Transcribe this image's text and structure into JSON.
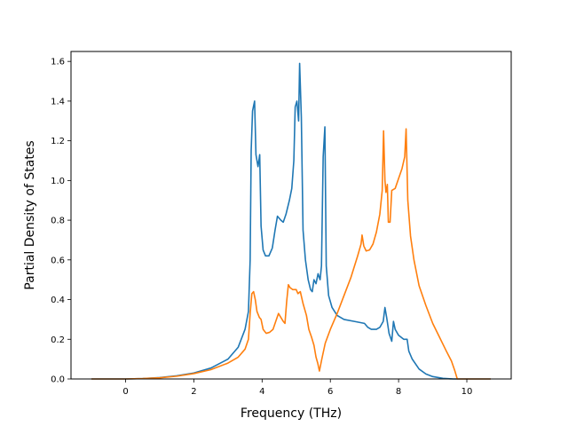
{
  "chart_data": {
    "type": "line",
    "title": "",
    "xlabel": "Frequency (THz)",
    "ylabel": "Partial Density of States",
    "xlim": [
      -1.6,
      11.3
    ],
    "ylim": [
      0.0,
      1.65
    ],
    "xticks": [
      0,
      2,
      4,
      6,
      8,
      10
    ],
    "yticks": [
      0.0,
      0.2,
      0.4,
      0.6,
      0.8,
      1.0,
      1.2,
      1.4,
      1.6
    ],
    "xtick_labels": [
      "0",
      "2",
      "4",
      "6",
      "8",
      "10"
    ],
    "ytick_labels": [
      "0.0",
      "0.2",
      "0.4",
      "0.6",
      "0.8",
      "1.0",
      "1.2",
      "1.4",
      "1.6"
    ],
    "grid": false,
    "legend": "none",
    "series": [
      {
        "color": "#1f77b4",
        "points": [
          [
            -1.0,
            0.0
          ],
          [
            0.0,
            0.0
          ],
          [
            0.5,
            0.002
          ],
          [
            1.0,
            0.007
          ],
          [
            1.5,
            0.016
          ],
          [
            2.0,
            0.03
          ],
          [
            2.5,
            0.055
          ],
          [
            3.0,
            0.1
          ],
          [
            3.3,
            0.16
          ],
          [
            3.5,
            0.25
          ],
          [
            3.6,
            0.34
          ],
          [
            3.65,
            0.6
          ],
          [
            3.68,
            1.15
          ],
          [
            3.72,
            1.35
          ],
          [
            3.78,
            1.4
          ],
          [
            3.82,
            1.13
          ],
          [
            3.88,
            1.07
          ],
          [
            3.93,
            1.13
          ],
          [
            3.97,
            0.77
          ],
          [
            4.03,
            0.65
          ],
          [
            4.1,
            0.62
          ],
          [
            4.2,
            0.62
          ],
          [
            4.3,
            0.66
          ],
          [
            4.38,
            0.75
          ],
          [
            4.45,
            0.82
          ],
          [
            4.55,
            0.8
          ],
          [
            4.62,
            0.79
          ],
          [
            4.7,
            0.83
          ],
          [
            4.8,
            0.9
          ],
          [
            4.87,
            0.96
          ],
          [
            4.93,
            1.1
          ],
          [
            4.97,
            1.37
          ],
          [
            5.02,
            1.4
          ],
          [
            5.07,
            1.3
          ],
          [
            5.1,
            1.59
          ],
          [
            5.15,
            1.32
          ],
          [
            5.2,
            0.75
          ],
          [
            5.27,
            0.6
          ],
          [
            5.35,
            0.5
          ],
          [
            5.42,
            0.45
          ],
          [
            5.47,
            0.44
          ],
          [
            5.52,
            0.5
          ],
          [
            5.58,
            0.48
          ],
          [
            5.64,
            0.53
          ],
          [
            5.7,
            0.5
          ],
          [
            5.74,
            0.57
          ],
          [
            5.79,
            1.12
          ],
          [
            5.84,
            1.27
          ],
          [
            5.88,
            0.57
          ],
          [
            5.95,
            0.42
          ],
          [
            6.05,
            0.36
          ],
          [
            6.2,
            0.32
          ],
          [
            6.4,
            0.3
          ],
          [
            6.7,
            0.29
          ],
          [
            7.0,
            0.28
          ],
          [
            7.1,
            0.26
          ],
          [
            7.2,
            0.25
          ],
          [
            7.35,
            0.25
          ],
          [
            7.45,
            0.26
          ],
          [
            7.55,
            0.29
          ],
          [
            7.6,
            0.36
          ],
          [
            7.65,
            0.31
          ],
          [
            7.72,
            0.23
          ],
          [
            7.8,
            0.19
          ],
          [
            7.85,
            0.29
          ],
          [
            7.9,
            0.25
          ],
          [
            8.0,
            0.22
          ],
          [
            8.15,
            0.2
          ],
          [
            8.25,
            0.2
          ],
          [
            8.3,
            0.14
          ],
          [
            8.4,
            0.1
          ],
          [
            8.6,
            0.05
          ],
          [
            8.8,
            0.025
          ],
          [
            9.0,
            0.012
          ],
          [
            9.3,
            0.003
          ],
          [
            9.6,
            0.0
          ],
          [
            10.7,
            0.0
          ]
        ]
      },
      {
        "color": "#ff7f0e",
        "points": [
          [
            -1.0,
            0.0
          ],
          [
            0.0,
            0.0
          ],
          [
            0.5,
            0.002
          ],
          [
            1.0,
            0.006
          ],
          [
            1.5,
            0.014
          ],
          [
            2.0,
            0.027
          ],
          [
            2.5,
            0.047
          ],
          [
            3.0,
            0.08
          ],
          [
            3.3,
            0.11
          ],
          [
            3.5,
            0.15
          ],
          [
            3.6,
            0.2
          ],
          [
            3.65,
            0.33
          ],
          [
            3.7,
            0.43
          ],
          [
            3.75,
            0.44
          ],
          [
            3.8,
            0.4
          ],
          [
            3.85,
            0.34
          ],
          [
            3.92,
            0.31
          ],
          [
            3.97,
            0.3
          ],
          [
            4.03,
            0.25
          ],
          [
            4.12,
            0.23
          ],
          [
            4.22,
            0.235
          ],
          [
            4.32,
            0.25
          ],
          [
            4.42,
            0.3
          ],
          [
            4.48,
            0.33
          ],
          [
            4.55,
            0.31
          ],
          [
            4.62,
            0.29
          ],
          [
            4.67,
            0.28
          ],
          [
            4.72,
            0.39
          ],
          [
            4.77,
            0.475
          ],
          [
            4.82,
            0.46
          ],
          [
            4.9,
            0.45
          ],
          [
            5.0,
            0.45
          ],
          [
            5.05,
            0.43
          ],
          [
            5.12,
            0.44
          ],
          [
            5.2,
            0.38
          ],
          [
            5.3,
            0.32
          ],
          [
            5.37,
            0.25
          ],
          [
            5.45,
            0.21
          ],
          [
            5.52,
            0.17
          ],
          [
            5.58,
            0.11
          ],
          [
            5.63,
            0.08
          ],
          [
            5.68,
            0.04
          ],
          [
            5.75,
            0.1
          ],
          [
            5.85,
            0.18
          ],
          [
            6.0,
            0.25
          ],
          [
            6.2,
            0.33
          ],
          [
            6.4,
            0.42
          ],
          [
            6.6,
            0.51
          ],
          [
            6.8,
            0.62
          ],
          [
            6.9,
            0.68
          ],
          [
            6.93,
            0.725
          ],
          [
            6.98,
            0.67
          ],
          [
            7.05,
            0.645
          ],
          [
            7.15,
            0.65
          ],
          [
            7.25,
            0.68
          ],
          [
            7.35,
            0.74
          ],
          [
            7.45,
            0.83
          ],
          [
            7.52,
            0.95
          ],
          [
            7.56,
            1.25
          ],
          [
            7.6,
            1.0
          ],
          [
            7.63,
            0.94
          ],
          [
            7.67,
            0.98
          ],
          [
            7.7,
            0.79
          ],
          [
            7.75,
            0.79
          ],
          [
            7.8,
            0.95
          ],
          [
            7.9,
            0.96
          ],
          [
            8.0,
            1.01
          ],
          [
            8.1,
            1.06
          ],
          [
            8.18,
            1.12
          ],
          [
            8.22,
            1.26
          ],
          [
            8.27,
            0.9
          ],
          [
            8.35,
            0.72
          ],
          [
            8.45,
            0.6
          ],
          [
            8.6,
            0.47
          ],
          [
            8.8,
            0.37
          ],
          [
            9.0,
            0.28
          ],
          [
            9.2,
            0.21
          ],
          [
            9.4,
            0.14
          ],
          [
            9.55,
            0.09
          ],
          [
            9.65,
            0.04
          ],
          [
            9.72,
            0.0
          ],
          [
            10.7,
            0.0
          ]
        ]
      }
    ]
  }
}
